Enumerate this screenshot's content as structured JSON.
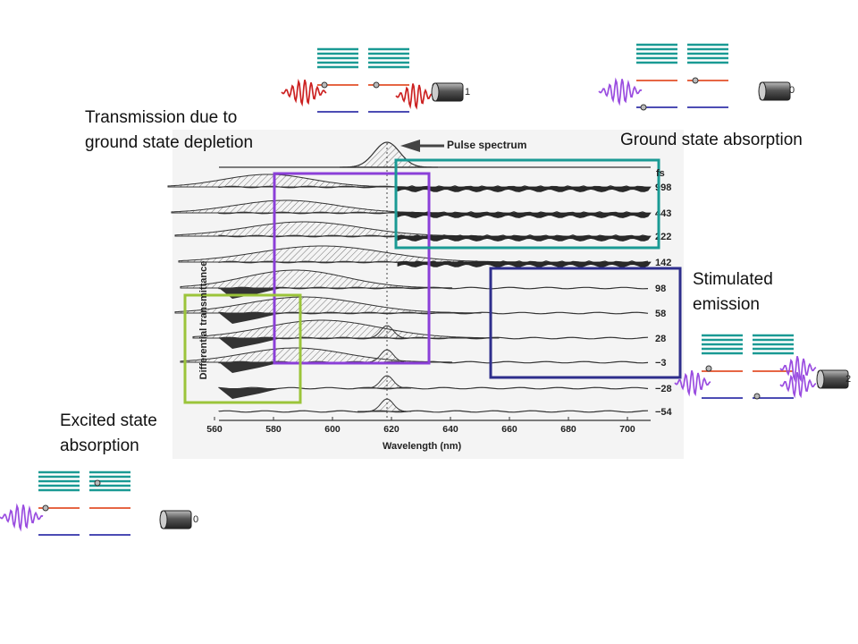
{
  "labels": {
    "transmission_line1": "Transmission due to",
    "transmission_line2": "ground state depletion",
    "ground_state_absorption": "Ground state absorption",
    "stimulated_line1": "Stimulated",
    "stimulated_line2": "emission",
    "excited_line1": "Excited state",
    "excited_line2": "absorption"
  },
  "figure": {
    "pulse_spectrum_label": "Pulse spectrum",
    "y_axis_label": "Differential transmittance",
    "x_axis_label": "Wavelength (nm)",
    "x_ticks": [
      "560",
      "580",
      "600",
      "620",
      "640",
      "660",
      "680",
      "700"
    ],
    "delay_unit": "fs",
    "delays": [
      "998",
      "443",
      "222",
      "142",
      "98",
      "58",
      "28",
      "−3",
      "−28",
      "−54"
    ]
  },
  "detectors": {
    "top_center": "1",
    "top_right": "0",
    "right": "2",
    "bottom_left": "0"
  },
  "colors": {
    "transmission_box": "#8b3fd8",
    "ground_box": "#1a9a94",
    "stimulated_box": "#2e2e8c",
    "excited_box": "#9bc43a",
    "upper_level": "#e2502a",
    "lower_level": "#3333aa",
    "pump_wave": "#cc2222",
    "probe_wave": "#9a4de0",
    "band": "#1a9a94"
  },
  "icons": [
    "energy-level-diagram-icon",
    "photon-wave-icon",
    "photodetector-icon"
  ]
}
